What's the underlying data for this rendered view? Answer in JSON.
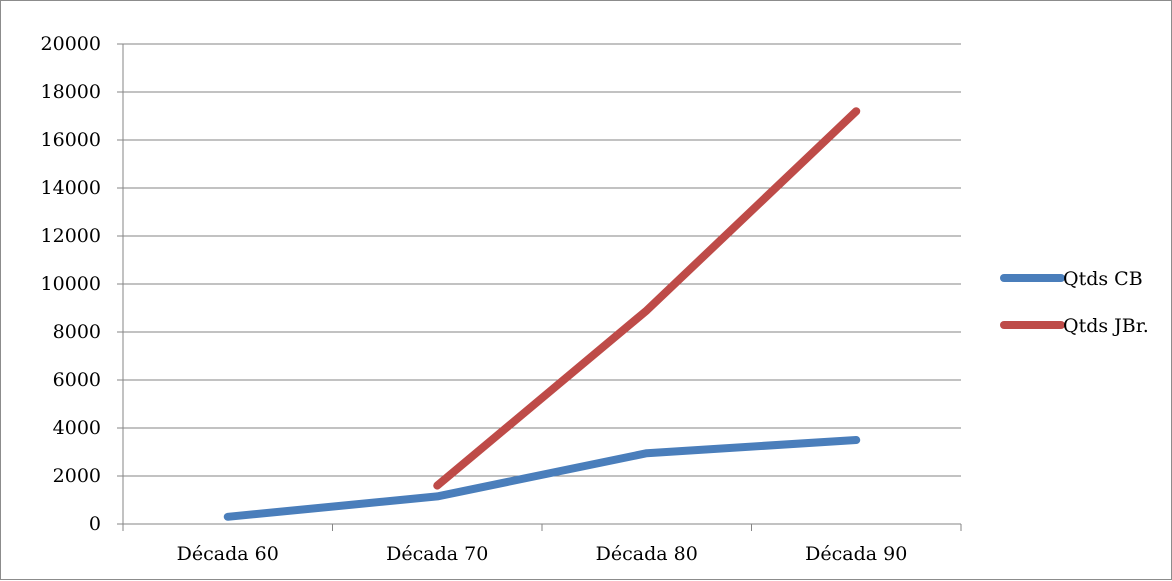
{
  "chart_data": {
    "type": "line",
    "title": "",
    "xlabel": "",
    "ylabel": "",
    "categories": [
      "Década 60",
      "Década 70",
      "Década 80",
      "Década 90"
    ],
    "ylim": [
      0,
      20000
    ],
    "yticks": [
      "0",
      "2000",
      "4000",
      "6000",
      "8000",
      "10000",
      "12000",
      "14000",
      "16000",
      "18000",
      "20000"
    ],
    "grid": true,
    "legend_position": "right",
    "series": [
      {
        "name": "Qtds CB",
        "color": "#4a7ebb",
        "values": [
          300,
          1150,
          2950,
          3500
        ]
      },
      {
        "name": "Qtds JBr.",
        "color": "#be4b48",
        "values": [
          null,
          1600,
          8900,
          17200
        ]
      }
    ]
  }
}
